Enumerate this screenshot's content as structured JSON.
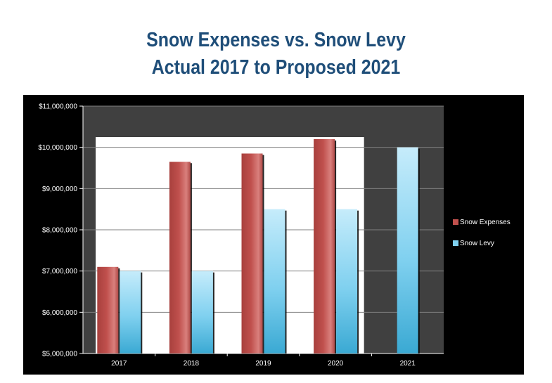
{
  "title": {
    "line1": "Snow Expenses vs. Snow Levy",
    "line2": "Actual 2017 to Proposed 2021"
  },
  "colors": {
    "title": "#1f4e79",
    "frame": "#000000",
    "plot_background": "#404040",
    "gridline": "#808080",
    "white_panel": "#ffffff",
    "snow_expenses": "#c0504d",
    "snow_levy": "#7fd0ef"
  },
  "chart_data": {
    "type": "bar",
    "title": "Snow Expenses vs. Snow Levy Actual 2017 to Proposed 2021",
    "categories": [
      "2017",
      "2018",
      "2019",
      "2020",
      "2021"
    ],
    "series": [
      {
        "name": "Snow Expenses",
        "values": [
          7100000,
          9650000,
          9850000,
          10200000,
          null
        ]
      },
      {
        "name": "Snow Levy",
        "values": [
          7000000,
          7000000,
          8500000,
          8500000,
          10000000
        ]
      }
    ],
    "ylim": [
      5000000,
      11000000
    ],
    "yticks": [
      5000000,
      6000000,
      7000000,
      8000000,
      9000000,
      10000000,
      11000000
    ],
    "ytick_labels": [
      "$5,000,000",
      "$6,000,000",
      "$7,000,000",
      "$8,000,000",
      "$9,000,000",
      "$10,000,000",
      "$11,000,000"
    ],
    "grid": true,
    "legend": "right",
    "xlabel": "",
    "ylabel": ""
  }
}
